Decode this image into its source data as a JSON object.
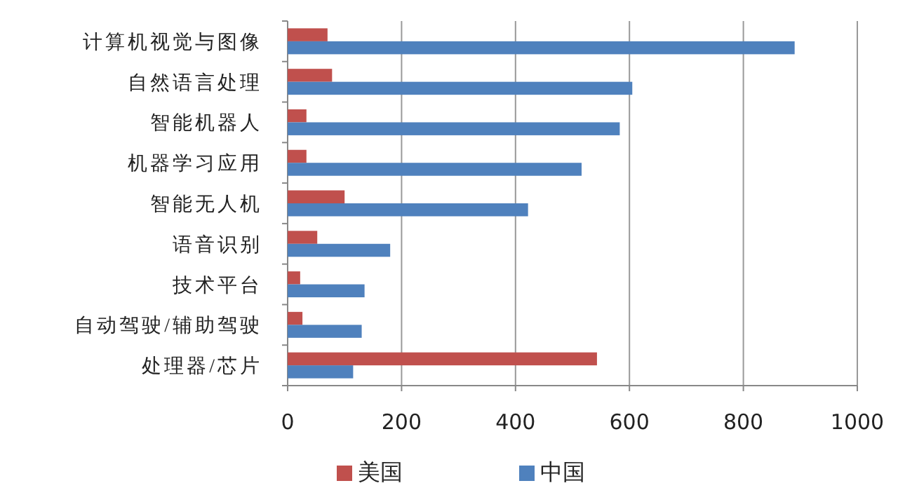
{
  "chart_data": {
    "type": "bar",
    "orientation": "horizontal",
    "categories": [
      "计算机视觉与图像",
      "自然语言处理",
      "智能机器人",
      "机器学习应用",
      "智能无人机",
      "语音识别",
      "技术平台",
      "自动驾驶/辅助驾驶",
      "处理器/芯片"
    ],
    "series": [
      {
        "name": "美国",
        "color": "#c0504d",
        "values": [
          70,
          78,
          33,
          33,
          100,
          52,
          22,
          26,
          543
        ]
      },
      {
        "name": "中国",
        "color": "#4f81bd",
        "values": [
          890,
          605,
          583,
          516,
          422,
          180,
          135,
          130,
          115
        ]
      }
    ],
    "xlim": [
      0,
      1000
    ],
    "xticks": [
      0,
      200,
      400,
      600,
      800,
      1000
    ],
    "grid": "x",
    "legend": "bottom"
  }
}
